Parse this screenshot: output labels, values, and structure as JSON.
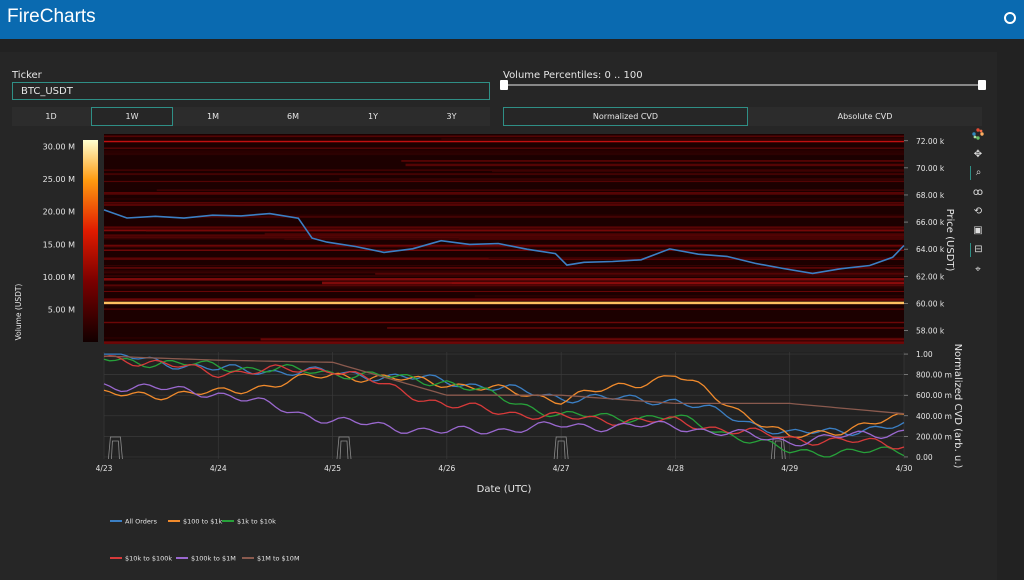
{
  "app": {
    "title": "FireCharts"
  },
  "ticker": {
    "label": "Ticker",
    "value": "BTC_USDT"
  },
  "percentiles": {
    "label": "Volume Percentiles: 0 .. 100",
    "min": 0,
    "max": 100
  },
  "timeframes": [
    "1D",
    "1W",
    "1M",
    "6M",
    "1Y",
    "3Y"
  ],
  "active_timeframe": "1W",
  "cvd_modes": [
    "Normalized CVD",
    "Absolute CVD"
  ],
  "active_cvd_mode": "Normalized CVD",
  "toolbar_icons": [
    "plotly-logo-icon",
    "pan-icon",
    "zoom-icon",
    "lasso-icon",
    "reset-icon",
    "save-icon",
    "hover-icon",
    "spike-icon"
  ],
  "colorbar": {
    "title": "Volume (USDT)",
    "ticks": [
      "30.00 M",
      "25.00 M",
      "20.00 M",
      "15.00 M",
      "10.00 M",
      "5.00 M"
    ]
  },
  "price_axis": {
    "title": "Price (USDT)",
    "ticks": [
      "72.00 k",
      "70.00 k",
      "68.00 k",
      "66.00 k",
      "64.00 k",
      "62.00 k",
      "60.00 k",
      "58.00 k"
    ]
  },
  "cvd_axis": {
    "title": "Normalized CVD (arb. u.)",
    "ticks": [
      "1.00",
      "800.00 m",
      "600.00 m",
      "400.00 m",
      "200.00 m",
      "0.00"
    ]
  },
  "x_axis": {
    "title": "Date (UTC)",
    "ticks": [
      "4/23",
      "4/24",
      "4/25",
      "4/26",
      "4/27",
      "4/28",
      "4/29",
      "4/30"
    ]
  },
  "legend": [
    {
      "name": "All Orders",
      "color": "#3b7fc4"
    },
    {
      "name": "$100 to $1k",
      "color": "#f08a2c"
    },
    {
      "name": "$1k to $10k",
      "color": "#27a13a"
    },
    {
      "name": "$10k to $100k",
      "color": "#d73a3a"
    },
    {
      "name": "$100k to $1M",
      "color": "#9a68cf"
    },
    {
      "name": "$1M to $10M",
      "color": "#8a5a4e"
    }
  ],
  "chart_data": [
    {
      "type": "heatmap",
      "x": [
        "4/23",
        "4/24",
        "4/25",
        "4/26",
        "4/27",
        "4/28",
        "4/29",
        "4/30"
      ],
      "xlabel": "Date (UTC)",
      "ylabel": "Price (USDT)",
      "ylim": [
        57000,
        72500
      ],
      "colorbar_label": "Volume (USDT)",
      "colorbar_range": [
        0,
        30000000
      ],
      "series": [
        {
          "name": "price",
          "x": [
            0,
            0.2,
            0.45,
            0.7,
            0.95,
            1.2,
            1.45,
            1.7,
            1.82,
            1.95,
            2.2,
            2.45,
            2.7,
            2.95,
            3.2,
            3.45,
            3.7,
            3.95,
            4.05,
            4.2,
            4.45,
            4.7,
            4.95,
            5.2,
            5.45,
            5.7,
            5.95,
            6.2,
            6.45,
            6.7,
            6.9,
            7.0
          ],
          "values": [
            66900,
            66400,
            66600,
            66500,
            66700,
            66600,
            66700,
            66300,
            64800,
            64500,
            64200,
            63800,
            64100,
            64700,
            64400,
            64400,
            63900,
            63500,
            62600,
            62800,
            62900,
            63100,
            64000,
            63700,
            63600,
            63100,
            62700,
            62300,
            62600,
            62800,
            63400,
            64300
          ]
        }
      ]
    },
    {
      "type": "line",
      "x": [
        "4/23",
        "4/24",
        "4/25",
        "4/26",
        "4/27",
        "4/28",
        "4/29",
        "4/30"
      ],
      "xlabel": "Date (UTC)",
      "ylabel": "Normalized CVD (arb. u.)",
      "ylim": [
        -0.02,
        1.02
      ],
      "series": [
        {
          "name": "All Orders",
          "values": [
            1.0,
            0.85,
            0.82,
            0.74,
            0.58,
            0.55,
            0.22,
            0.3
          ]
        },
        {
          "name": "$100 to $1k",
          "values": [
            0.6,
            0.62,
            0.8,
            0.72,
            0.56,
            0.8,
            0.18,
            0.38
          ]
        },
        {
          "name": "$1k to $10k",
          "values": [
            0.95,
            0.88,
            0.82,
            0.73,
            0.4,
            0.38,
            0.05,
            0.05
          ]
        },
        {
          "name": "$10k to $100k",
          "values": [
            0.98,
            0.82,
            0.86,
            0.5,
            0.38,
            0.34,
            0.18,
            0.12
          ]
        },
        {
          "name": "$100k to $1M",
          "values": [
            0.7,
            0.62,
            0.35,
            0.24,
            0.3,
            0.3,
            0.15,
            0.25
          ]
        },
        {
          "name": "$1M to $10M",
          "values": [
            0.98,
            0.94,
            0.92,
            0.6,
            0.6,
            0.52,
            0.52,
            0.42
          ]
        }
      ]
    }
  ]
}
